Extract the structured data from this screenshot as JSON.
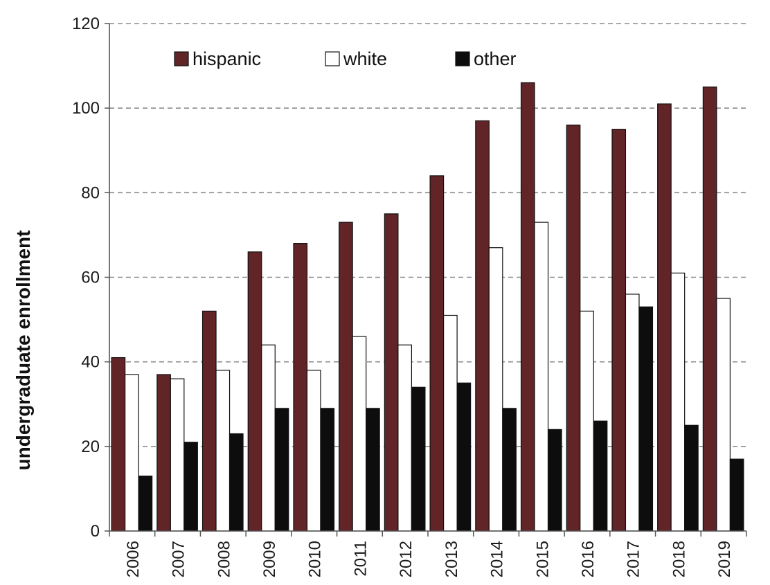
{
  "chart_data": {
    "type": "bar",
    "title": "",
    "xlabel": "",
    "ylabel": "undergraduate enrollment",
    "ylim": [
      0,
      120
    ],
    "yticks": [
      0,
      20,
      40,
      60,
      80,
      100,
      120
    ],
    "grid": true,
    "legend_position": "top-left",
    "categories": [
      "2006",
      "2007",
      "2008",
      "2009",
      "2010",
      "2011",
      "2012",
      "2013",
      "2014",
      "2015",
      "2016",
      "2017",
      "2018",
      "2019"
    ],
    "series": [
      {
        "name": "hispanic",
        "color": "#612427",
        "values": [
          41,
          37,
          52,
          66,
          68,
          73,
          75,
          84,
          97,
          106,
          96,
          95,
          101,
          105
        ]
      },
      {
        "name": "white",
        "color": "#ffffff",
        "values": [
          37,
          36,
          38,
          44,
          38,
          46,
          44,
          51,
          67,
          73,
          52,
          56,
          61,
          55
        ]
      },
      {
        "name": "other",
        "color": "#0d0d0d",
        "values": [
          13,
          21,
          23,
          29,
          29,
          29,
          34,
          35,
          29,
          24,
          26,
          53,
          25,
          17
        ]
      }
    ]
  }
}
